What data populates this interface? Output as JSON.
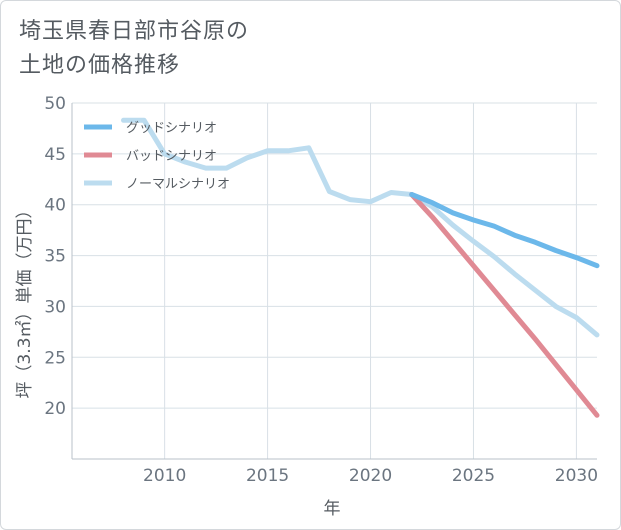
{
  "title_lines": [
    "埼玉県春日部市谷原の",
    "土地の価格推移"
  ],
  "colors": {
    "good": "#6cb8ea",
    "bad": "#e08a94",
    "normal": "#bcdcef",
    "grid": "#d8e0e6",
    "axis_text": "#6b7580"
  },
  "chart_data": {
    "type": "line",
    "title": "埼玉県春日部市谷原の土地の価格推移",
    "xlabel": "年",
    "ylabel": "坪（3.3㎡）単価（万円）",
    "xlim": [
      2005.5,
      2031
    ],
    "ylim": [
      15,
      50
    ],
    "x_ticks": [
      2010,
      2015,
      2020,
      2025,
      2030
    ],
    "y_ticks": [
      20,
      25,
      30,
      35,
      40,
      45,
      50
    ],
    "legend_position": "top-left",
    "series": [
      {
        "name": "グッドシナリオ",
        "key": "good",
        "x": [
          2022,
          2023,
          2024,
          2025,
          2026,
          2027,
          2028,
          2029,
          2030,
          2031
        ],
        "y": [
          41.0,
          40.2,
          39.2,
          38.5,
          37.9,
          37.0,
          36.3,
          35.5,
          34.8,
          34.0
        ]
      },
      {
        "name": "バッドシナリオ",
        "key": "bad",
        "x": [
          2022,
          2023,
          2024,
          2025,
          2026,
          2027,
          2028,
          2029,
          2030,
          2031
        ],
        "y": [
          41.0,
          38.8,
          36.4,
          34.0,
          31.6,
          29.2,
          26.8,
          24.3,
          21.8,
          19.3
        ]
      },
      {
        "name": "ノーマルシナリオ",
        "key": "normal",
        "x": [
          2008,
          2009,
          2010,
          2011,
          2012,
          2013,
          2014,
          2015,
          2016,
          2017,
          2018,
          2019,
          2020,
          2021,
          2022,
          2023,
          2024,
          2025,
          2026,
          2027,
          2028,
          2029,
          2030,
          2031
        ],
        "y": [
          48.3,
          48.3,
          45.0,
          44.2,
          43.6,
          43.6,
          44.6,
          45.3,
          45.3,
          45.6,
          41.3,
          40.5,
          40.3,
          41.2,
          41.0,
          39.8,
          38.0,
          36.4,
          34.9,
          33.2,
          31.6,
          30.0,
          28.9,
          27.2
        ]
      }
    ]
  }
}
